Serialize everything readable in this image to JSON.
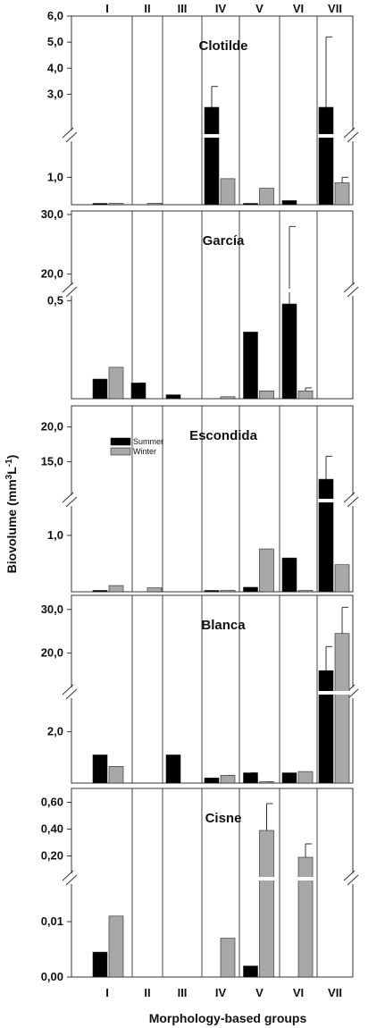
{
  "chart_data": {
    "type": "bar",
    "groups": [
      "I",
      "II",
      "III",
      "IV",
      "V",
      "VI",
      "VII"
    ],
    "xlabel": "Morphology-based groups",
    "ylabel": "Biovolume (mm3L-1)",
    "ylabel_parts": {
      "main": "Biovolume (mm",
      "sup1": "3",
      "mid": "L",
      "sup2": "-1",
      "end": ")"
    },
    "legend": {
      "labels": [
        "Summer",
        "Winter"
      ],
      "colors": [
        "#000000",
        "#a8a8a8"
      ],
      "placement": "upper-left of Escondida panel"
    },
    "series_colors": {
      "summer": "#000000",
      "winter": "#a8a8a8"
    },
    "panels": [
      {
        "title": "Clotilde",
        "scale": "broken",
        "lower_range": [
          0,
          1.5
        ],
        "upper_range": [
          2.5,
          6.0
        ],
        "lower_ticks": [
          "1,0"
        ],
        "upper_ticks": [
          "6,0",
          "5,0",
          "4,0",
          "3,0"
        ],
        "tick_values_lower": [
          1.0
        ],
        "tick_values_upper": [
          6.0,
          5.0,
          4.0,
          3.0
        ],
        "summer": [
          0.03,
          0,
          0,
          2.5,
          0.02,
          0.15,
          2.5
        ],
        "summer_err": [
          0.01,
          0,
          0,
          3.3,
          0.03,
          0.07,
          5.2
        ],
        "winter": [
          0.05,
          0.05,
          0,
          0.95,
          0.6,
          0,
          0.8
        ],
        "winter_err": [
          0.01,
          0.04,
          0,
          0.13,
          0.45,
          0,
          1.0
        ],
        "summer_broken": [
          false,
          false,
          false,
          true,
          false,
          false,
          true
        ],
        "winter_broken": [
          false,
          false,
          false,
          false,
          false,
          false,
          false
        ]
      },
      {
        "title": "García",
        "scale": "broken",
        "lower_range": [
          0,
          0.62
        ],
        "upper_range": [
          15,
          30
        ],
        "lower_ticks": [
          "0,5"
        ],
        "upper_ticks": [
          "30,0",
          "20,0"
        ],
        "tick_values_lower": [
          0.5
        ],
        "tick_values_upper": [
          30,
          20
        ],
        "summer": [
          0.1,
          0.08,
          0.02,
          0,
          0.34,
          15,
          0
        ],
        "summer_err": [
          0.05,
          0.08,
          0.015,
          0,
          0.18,
          28,
          0
        ],
        "winter": [
          0.16,
          0,
          0,
          0.01,
          0.04,
          0.04,
          0
        ],
        "winter_err": [
          0.06,
          0,
          0,
          0.003,
          0.01,
          0.055,
          0
        ],
        "summer_broken": [
          false,
          false,
          false,
          false,
          false,
          true,
          false
        ],
        "winter_broken": [
          false,
          false,
          false,
          false,
          false,
          false,
          false
        ]
      },
      {
        "title": "Escondida",
        "scale": "broken",
        "lower_range": [
          0,
          1.3
        ],
        "upper_range": [
          12,
          22
        ],
        "lower_ticks": [
          "1,0"
        ],
        "upper_ticks": [
          "20,0",
          "15,0"
        ],
        "tick_values_lower": [
          1.0
        ],
        "tick_values_upper": [
          20,
          15
        ],
        "summer": [
          0.01,
          0,
          0,
          0.02,
          0.08,
          0.6,
          12.5
        ],
        "summer_err": [
          0.005,
          0,
          0,
          0.01,
          0.05,
          0.5,
          15.8
        ],
        "winter": [
          0.11,
          0.07,
          0,
          0.02,
          0.76,
          0.01,
          0.48
        ],
        "winter_err": [
          0.04,
          0.05,
          0,
          0.01,
          0.27,
          0.005,
          0.37
        ],
        "summer_broken": [
          false,
          false,
          false,
          false,
          false,
          false,
          true
        ],
        "winter_broken": [
          false,
          false,
          false,
          false,
          false,
          false,
          false
        ]
      },
      {
        "title": "Blanca",
        "scale": "broken",
        "lower_range": [
          0,
          3.0
        ],
        "upper_range": [
          14,
          32
        ],
        "lower_ticks": [
          "2,0"
        ],
        "upper_ticks": [
          "30,0",
          "20,0"
        ],
        "tick_values_lower": [
          2.0
        ],
        "tick_values_upper": [
          30,
          20
        ],
        "summer": [
          1.1,
          0,
          1.1,
          0.2,
          0.4,
          0.4,
          16
        ],
        "summer_err": [
          0.08,
          0,
          0.1,
          0.07,
          0.4,
          0.15,
          21.5
        ],
        "winter": [
          0.65,
          0,
          0,
          0.3,
          0.05,
          0.45,
          24.5
        ],
        "winter_err": [
          0.4,
          0,
          0,
          0.3,
          0.05,
          0.4,
          30.5
        ],
        "summer_broken": [
          false,
          false,
          false,
          false,
          false,
          false,
          true
        ],
        "winter_broken": [
          false,
          false,
          false,
          false,
          false,
          false,
          true
        ]
      },
      {
        "title": "Cisne",
        "scale": "broken",
        "lower_range": [
          0,
          0.015
        ],
        "upper_range": [
          0.15,
          0.65
        ],
        "lower_ticks": [
          "0,01",
          "0,00"
        ],
        "upper_ticks": [
          "0,60",
          "0,40",
          "0,20"
        ],
        "tick_values_lower": [
          0.01,
          0.0
        ],
        "tick_values_upper": [
          0.6,
          0.4,
          0.2
        ],
        "summer": [
          0.0045,
          0,
          0,
          0,
          0.002,
          0,
          0
        ],
        "summer_err": [
          0.0022,
          0,
          0,
          0,
          0.0009,
          0,
          0
        ],
        "winter": [
          0.011,
          0,
          0,
          0.007,
          0.39,
          0.19,
          0
        ],
        "winter_err": [
          0.005,
          0,
          0,
          0.003,
          0.59,
          0.29,
          0
        ],
        "summer_broken": [
          false,
          false,
          false,
          false,
          false,
          false,
          false
        ],
        "winter_broken": [
          false,
          false,
          false,
          false,
          true,
          true,
          false
        ]
      }
    ]
  }
}
